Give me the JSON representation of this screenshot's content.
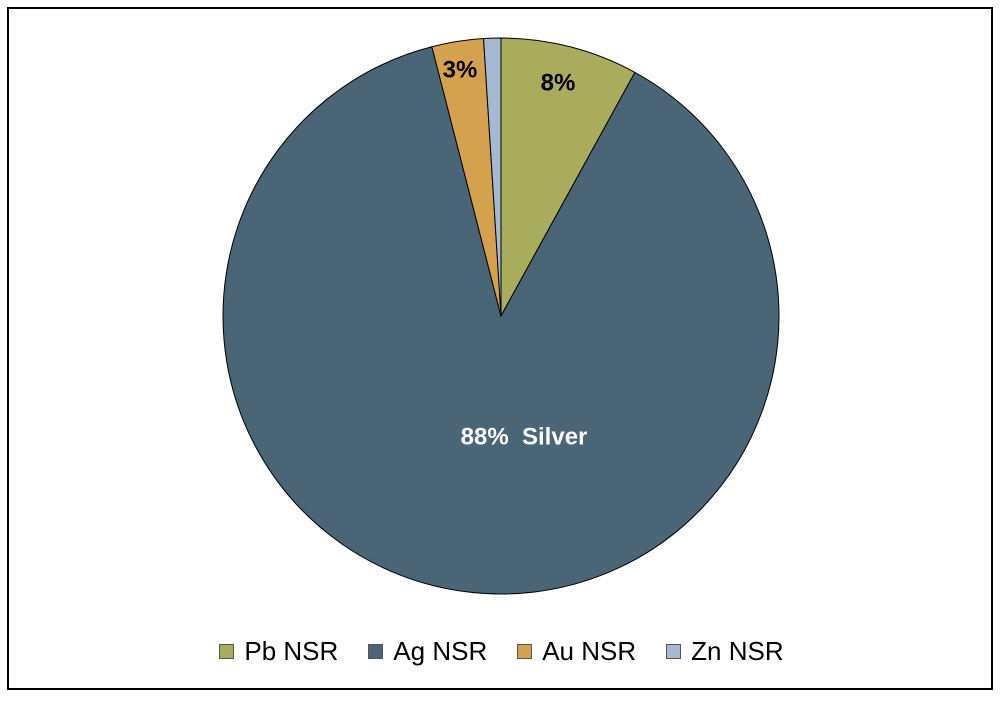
{
  "chart_data": {
    "type": "pie",
    "start_angle_deg": 0,
    "direction": "clockwise",
    "slices": [
      {
        "label": "Pb NSR",
        "value": 8,
        "color": "#a9ac5d",
        "data_label": "8%",
        "label_color": "#000000"
      },
      {
        "label": "Ag NSR",
        "value": 88,
        "color": "#4a6575",
        "data_label": "88%  Silver",
        "label_color": "#ffffff"
      },
      {
        "label": "Au NSR",
        "value": 3,
        "color": "#d4a24e",
        "data_label": "3%",
        "label_color": "#000000"
      },
      {
        "label": "Zn NSR",
        "value": 1,
        "color": "#a6b9d1",
        "data_label": "",
        "label_color": "#000000"
      }
    ],
    "legend_position": "bottom"
  }
}
